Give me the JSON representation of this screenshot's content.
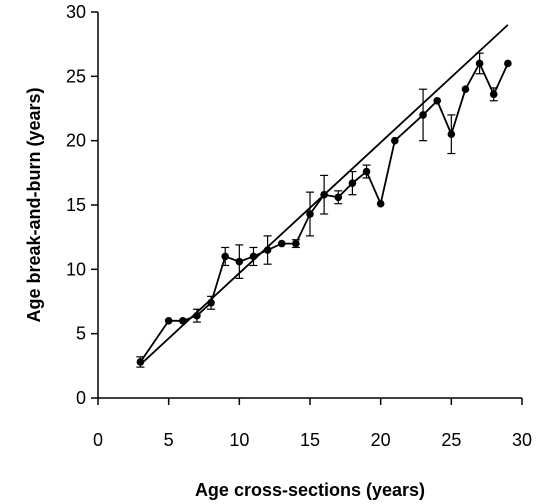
{
  "chart_data": {
    "type": "scatter",
    "xlabel": "Age cross-sections (years)",
    "ylabel": "Age break-and-burn (years)",
    "xlim": [
      0,
      30
    ],
    "ylim": [
      0,
      30
    ],
    "xticks": [
      0,
      5,
      10,
      15,
      20,
      25,
      30
    ],
    "yticks": [
      0,
      5,
      10,
      15,
      20,
      25,
      30
    ],
    "grid": false,
    "series": [
      {
        "style": "line-with-markers-and-error-bars",
        "points": [
          {
            "x": 3,
            "y": 2.8,
            "err": 0.4
          },
          {
            "x": 5,
            "y": 6.0,
            "err": 0
          },
          {
            "x": 6,
            "y": 6.0,
            "err": 0
          },
          {
            "x": 7,
            "y": 6.4,
            "err": 0.5
          },
          {
            "x": 8,
            "y": 7.4,
            "err": 0.5
          },
          {
            "x": 9,
            "y": 11.0,
            "err": 0.7
          },
          {
            "x": 10,
            "y": 10.6,
            "err": 1.3
          },
          {
            "x": 11,
            "y": 11.0,
            "err": 0.7
          },
          {
            "x": 12,
            "y": 11.5,
            "err": 1.1
          },
          {
            "x": 13,
            "y": 12.0,
            "err": 0
          },
          {
            "x": 14,
            "y": 12.0,
            "err": 0.3
          },
          {
            "x": 15,
            "y": 14.3,
            "err": 1.7
          },
          {
            "x": 16,
            "y": 15.8,
            "err": 1.5
          },
          {
            "x": 17,
            "y": 15.6,
            "err": 0.5
          },
          {
            "x": 18,
            "y": 16.7,
            "err": 0.9
          },
          {
            "x": 19,
            "y": 17.6,
            "err": 0.5
          },
          {
            "x": 20,
            "y": 15.1,
            "err": 0
          },
          {
            "x": 21,
            "y": 20.0,
            "err": 0
          },
          {
            "x": 23,
            "y": 22.0,
            "err": 2.0
          },
          {
            "x": 24,
            "y": 23.1,
            "err": 0
          },
          {
            "x": 25,
            "y": 20.5,
            "err": 1.5
          },
          {
            "x": 26,
            "y": 24.0,
            "err": 0
          },
          {
            "x": 27,
            "y": 26.0,
            "err": 0.8
          },
          {
            "x": 28,
            "y": 23.6,
            "err": 0.5
          },
          {
            "x": 29,
            "y": 26.0,
            "err": 0
          }
        ]
      },
      {
        "style": "line",
        "points": [
          {
            "x": 3,
            "y": 2.6
          },
          {
            "x": 29,
            "y": 29.0
          }
        ]
      }
    ]
  }
}
